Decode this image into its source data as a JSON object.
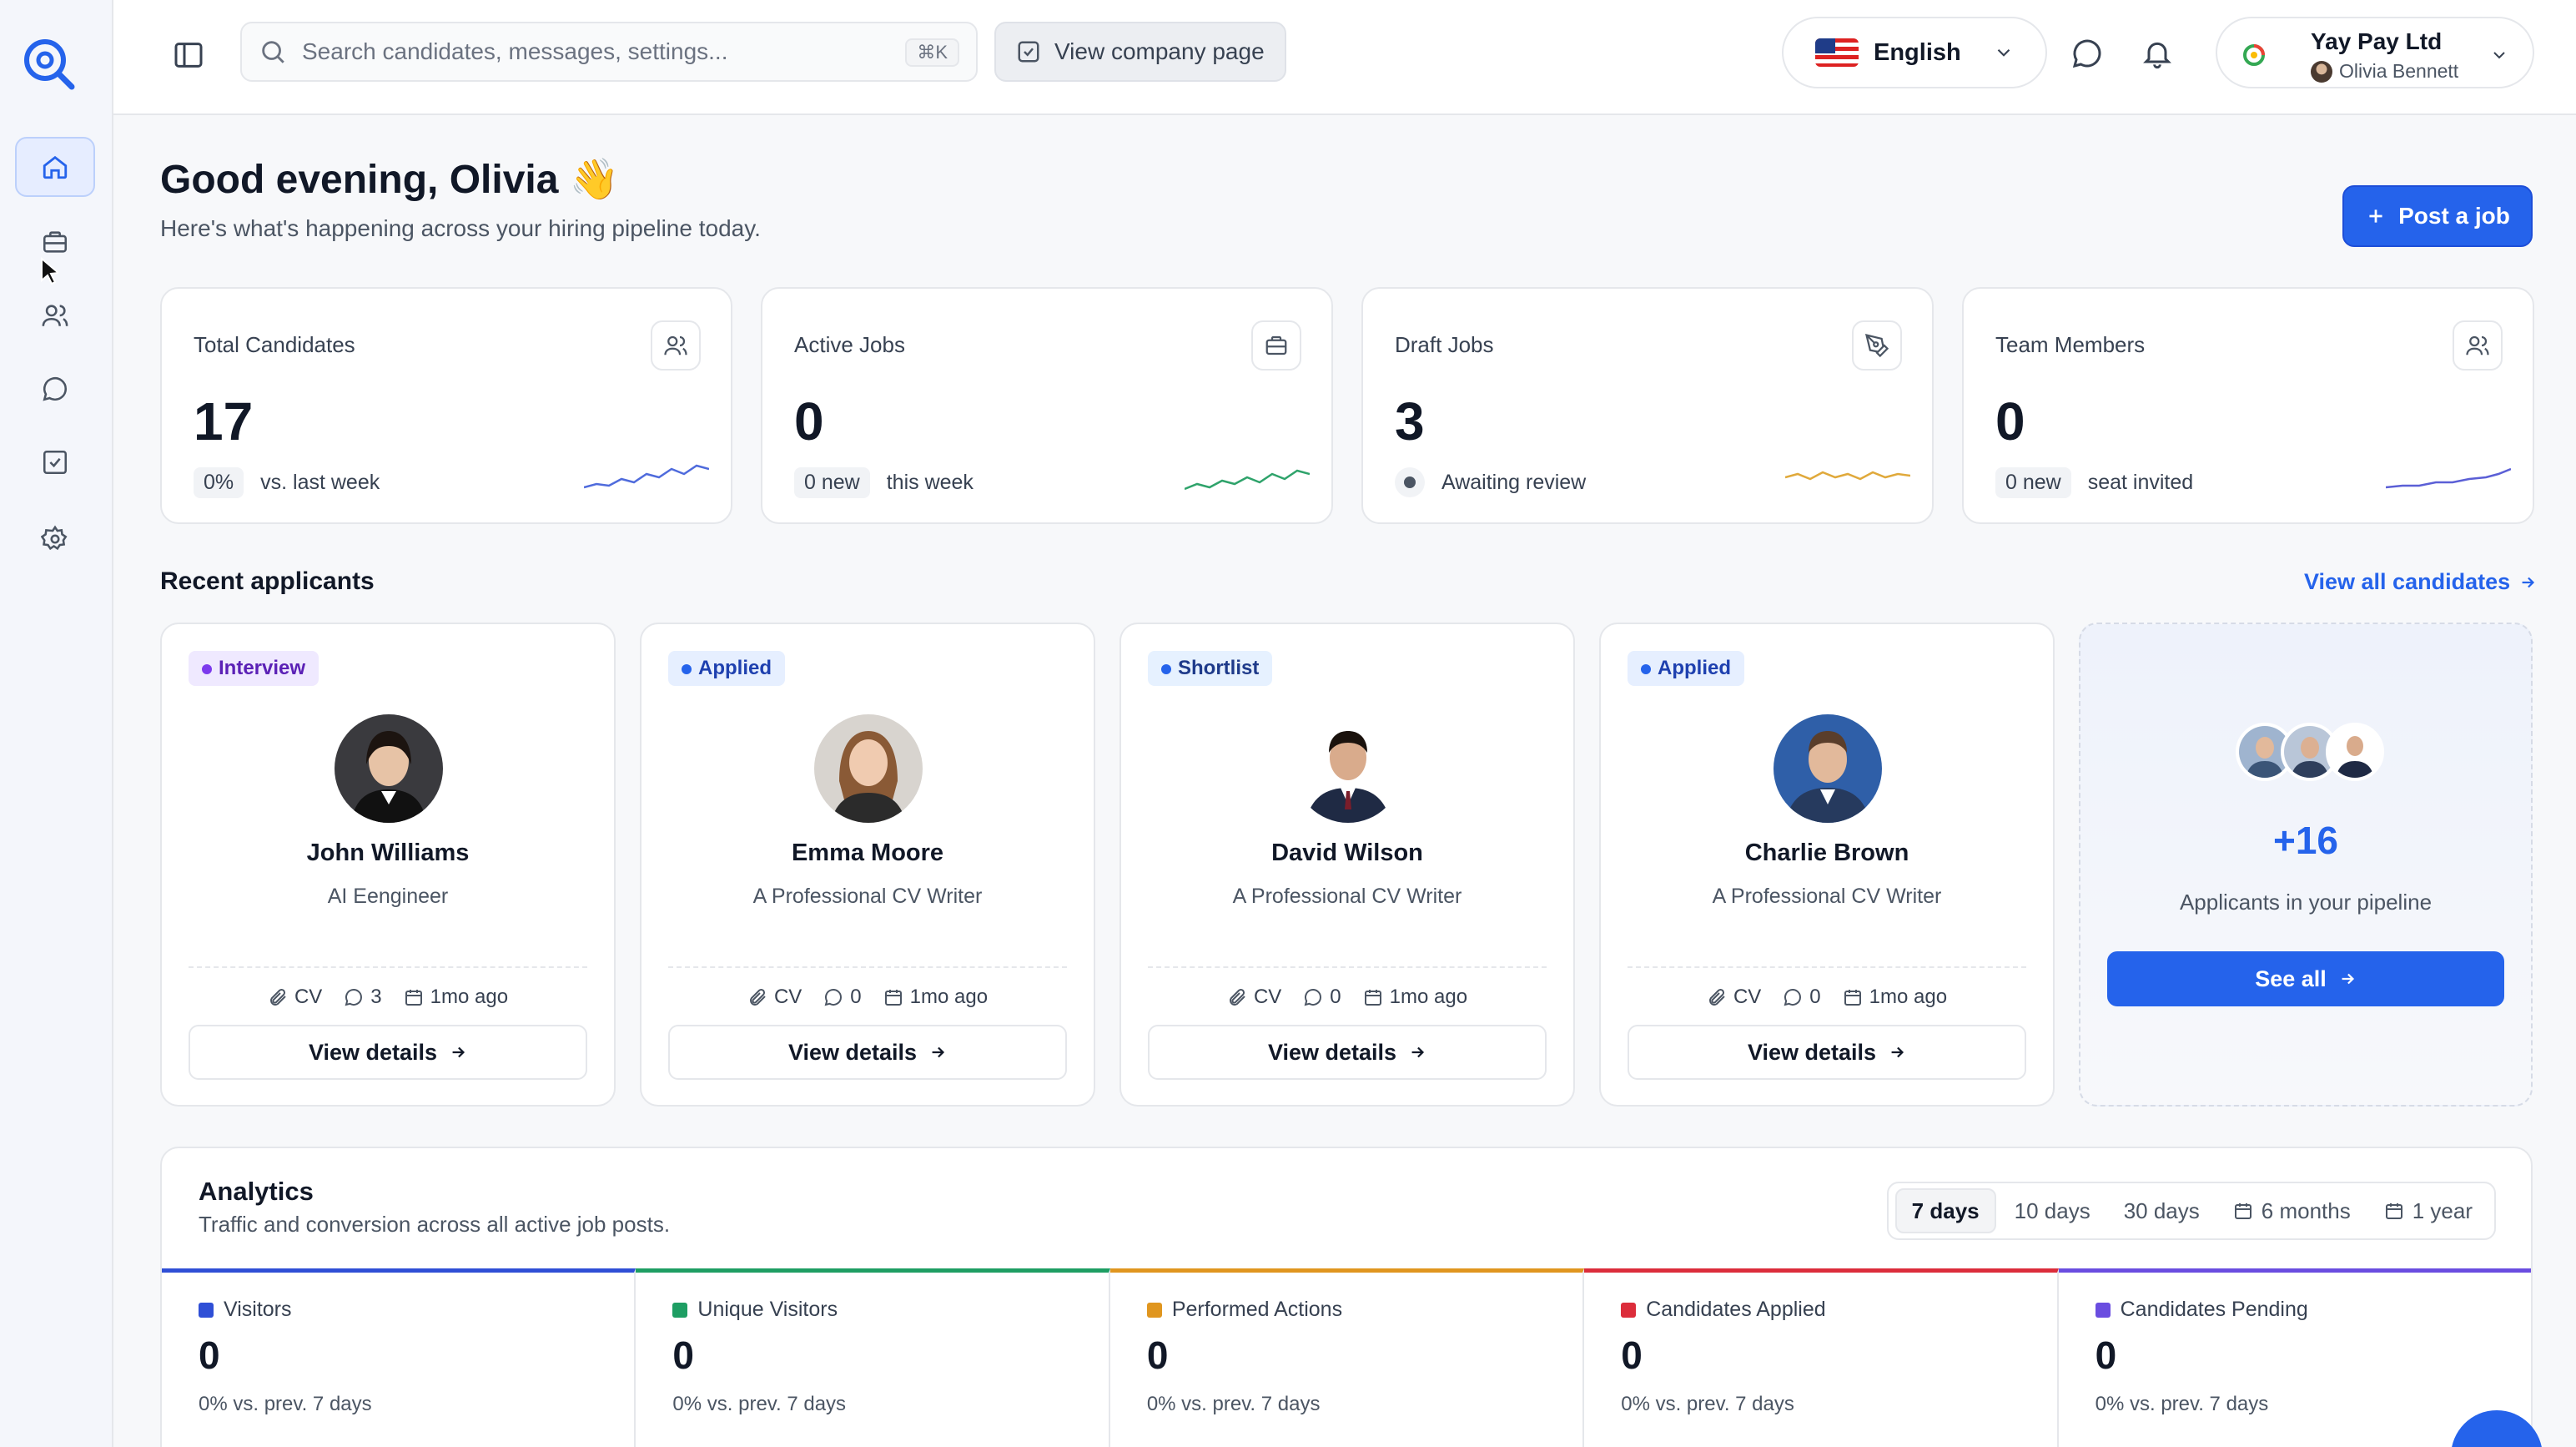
{
  "topbar": {
    "search_placeholder": "Search candidates, messages, settings...",
    "search_shortcut": "⌘K",
    "company_page_label": "View company page",
    "language": "English",
    "company_name": "Yay Pay Ltd",
    "user_name": "Olivia Bennett"
  },
  "header": {
    "greeting": "Good evening, Olivia 👋",
    "subtitle": "Here's what's happening across your hiring pipeline today.",
    "post_job_label": "Post a job"
  },
  "stats": [
    {
      "label": "Total Candidates",
      "value": "17",
      "pill": "0%",
      "note": "vs. last week",
      "icon": "users-icon",
      "spark_color": "#4f6bdc"
    },
    {
      "label": "Active Jobs",
      "value": "0",
      "pill": "0 new",
      "note": "this week",
      "icon": "briefcase-icon",
      "spark_color": "#2fa36b"
    },
    {
      "label": "Draft Jobs",
      "value": "3",
      "pill": "",
      "note": "Awaiting review",
      "icon": "pen-tool-icon",
      "spark_color": "#e0a93b"
    },
    {
      "label": "Team Members",
      "value": "0",
      "pill": "0 new",
      "note": "seat invited",
      "icon": "users-icon",
      "spark_color": "#5b5fd6"
    }
  ],
  "recent": {
    "title": "Recent applicants",
    "view_all": "View all candidates",
    "applicants": [
      {
        "status": "Interview",
        "name": "John Williams",
        "role": "AI Eengineer",
        "cv": "CV",
        "comments": "3",
        "time": "1mo ago",
        "button": "View details"
      },
      {
        "status": "Applied",
        "name": "Emma Moore",
        "role": "A Professional CV Writer",
        "cv": "CV",
        "comments": "0",
        "time": "1mo ago",
        "button": "View details"
      },
      {
        "status": "Shortlist",
        "name": "David Wilson",
        "role": "A Professional CV Writer",
        "cv": "CV",
        "comments": "0",
        "time": "1mo ago",
        "button": "View details"
      },
      {
        "status": "Applied",
        "name": "Charlie Brown",
        "role": "A Professional CV Writer",
        "cv": "CV",
        "comments": "0",
        "time": "1mo ago",
        "button": "View details"
      }
    ],
    "pipeline": {
      "count": "+16",
      "subtitle": "Applicants in your pipeline",
      "button": "See all"
    }
  },
  "analytics": {
    "title": "Analytics",
    "subtitle": "Traffic and conversion across all active job posts.",
    "ranges": [
      "7 days",
      "10 days",
      "30 days",
      "6 months",
      "1 year"
    ],
    "active_range": "7 days",
    "metrics": [
      {
        "label": "Visitors",
        "value": "0",
        "change": "0% vs. prev. 7 days",
        "color": "#2f4fd6"
      },
      {
        "label": "Unique Visitors",
        "value": "0",
        "change": "0% vs. prev. 7 days",
        "color": "#1e9e63"
      },
      {
        "label": "Performed Actions",
        "value": "0",
        "change": "0% vs. prev. 7 days",
        "color": "#e0961f"
      },
      {
        "label": "Candidates Applied",
        "value": "0",
        "change": "0% vs. prev. 7 days",
        "color": "#dc2d3b"
      },
      {
        "label": "Candidates Pending",
        "value": "0",
        "change": "0% vs. prev. 7 days",
        "color": "#6a4de0"
      }
    ]
  }
}
